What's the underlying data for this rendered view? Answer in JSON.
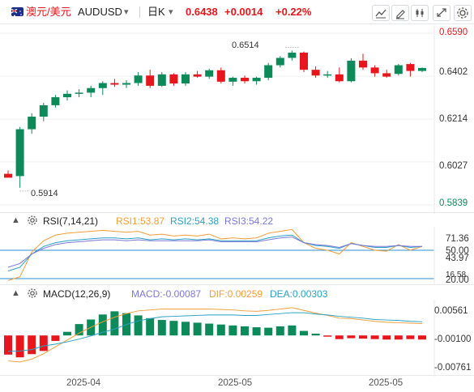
{
  "header": {
    "symbol_cn": "澳元/美元",
    "symbol_code": "AUDUSD",
    "caret": "▾",
    "period": "日K",
    "price": "0.6438",
    "change": "+0.0014",
    "change_pct": "+0.22%",
    "up_color": "#e7161c",
    "flag_icon": "australia-flag-icon",
    "tools": [
      "candlestick-chart-icon",
      "pencil-draw-icon",
      "indicator-settings-icon",
      "fullscreen-expand-icon",
      "settings-icon"
    ]
  },
  "main_chart": {
    "y_ticks": [
      "0.6590",
      "0.6402",
      "0.6214",
      "0.6027",
      "0.5839"
    ],
    "high_label": "0.6514",
    "low_label": "0.5914",
    "colors": {
      "up": "#0d8a5a",
      "down": "#e7161c",
      "axis_red": "#e7161c"
    }
  },
  "rsi": {
    "title": "RSI(7,14,21)",
    "rsi1": "RSI1:53.87",
    "rsi2": "RSI2:54.38",
    "rsi3": "RSI3:54.22",
    "y_ticks": [
      "71.36",
      "50.00",
      "43.97",
      "20.00",
      "16.58"
    ],
    "colors": {
      "rsi1": "#f29d38",
      "rsi2": "#2aa0c6",
      "rsi3": "#7b78d8"
    }
  },
  "macd": {
    "title": "MACD(12,26,9)",
    "macd": "MACD:-0.00087",
    "dif": "DIF:0.00259",
    "dea": "DEA:0.00303",
    "y_ticks": [
      "0.00561",
      "-0.00100",
      "-0.00761"
    ],
    "colors": {
      "macd": "#7b78d8",
      "dif": "#f29d38",
      "dea": "#2aa0c6"
    }
  },
  "x_axis": {
    "labels": [
      "2025-04",
      "2025-05",
      "2025-05"
    ]
  },
  "chart_data": [
    {
      "type": "candlestick",
      "title": "AUDUSD 日K",
      "y_range": [
        0.5839,
        0.659
      ],
      "high_label": 0.6514,
      "low_label": 0.5914,
      "candles_ohlc": [
        [
          0.5975,
          0.599,
          0.5965,
          0.5958
        ],
        [
          0.5965,
          0.618,
          0.5914,
          0.617
        ],
        [
          0.617,
          0.624,
          0.615,
          0.6225
        ],
        [
          0.6225,
          0.6285,
          0.6205,
          0.6275
        ],
        [
          0.6275,
          0.632,
          0.6265,
          0.631
        ],
        [
          0.631,
          0.634,
          0.6295,
          0.6325
        ],
        [
          0.6325,
          0.6345,
          0.631,
          0.633
        ],
        [
          0.633,
          0.636,
          0.631,
          0.635
        ],
        [
          0.635,
          0.638,
          0.632,
          0.6372
        ],
        [
          0.6372,
          0.639,
          0.6355,
          0.6365
        ],
        [
          0.6365,
          0.6385,
          0.635,
          0.6372
        ],
        [
          0.6372,
          0.642,
          0.636,
          0.6405
        ],
        [
          0.6405,
          0.643,
          0.635,
          0.636
        ],
        [
          0.636,
          0.642,
          0.6355,
          0.641
        ],
        [
          0.641,
          0.6415,
          0.636,
          0.637
        ],
        [
          0.637,
          0.642,
          0.636,
          0.641
        ],
        [
          0.641,
          0.6425,
          0.6395,
          0.64
        ],
        [
          0.64,
          0.6435,
          0.639,
          0.6428
        ],
        [
          0.6428,
          0.644,
          0.637,
          0.6378
        ],
        [
          0.6378,
          0.64,
          0.636,
          0.6395
        ],
        [
          0.6395,
          0.6405,
          0.637,
          0.638
        ],
        [
          0.638,
          0.64,
          0.6365,
          0.6395
        ],
        [
          0.6395,
          0.646,
          0.6385,
          0.645
        ],
        [
          0.645,
          0.649,
          0.644,
          0.6482
        ],
        [
          0.6482,
          0.6514,
          0.647,
          0.6505
        ],
        [
          0.6505,
          0.651,
          0.642,
          0.643
        ],
        [
          0.643,
          0.6445,
          0.6395,
          0.6405
        ],
        [
          0.6405,
          0.6425,
          0.6395,
          0.641
        ],
        [
          0.641,
          0.644,
          0.6375,
          0.638
        ],
        [
          0.638,
          0.648,
          0.6375,
          0.647
        ],
        [
          0.647,
          0.65,
          0.643,
          0.644
        ],
        [
          0.644,
          0.645,
          0.64,
          0.6415
        ],
        [
          0.6415,
          0.643,
          0.6395,
          0.64
        ],
        [
          0.6412,
          0.6455,
          0.6405,
          0.645
        ],
        [
          0.6455,
          0.646,
          0.64,
          0.6425
        ],
        [
          0.6425,
          0.644,
          0.642,
          0.6438
        ]
      ]
    },
    {
      "type": "line",
      "title": "RSI(7,14,21)",
      "y_range": [
        16.58,
        71.36
      ],
      "series": [
        {
          "name": "RSI1",
          "values": [
            18,
            22,
            48,
            60,
            66,
            68,
            69,
            70,
            71,
            70,
            69,
            70,
            66,
            67,
            65,
            66,
            65,
            67,
            62,
            63,
            62,
            63,
            68,
            70,
            72,
            58,
            52,
            50,
            46,
            58,
            54,
            50,
            49,
            56,
            50,
            54
          ]
        },
        {
          "name": "RSI2",
          "values": [
            28,
            32,
            46,
            54,
            58,
            60,
            61,
            62,
            63,
            63,
            62,
            63,
            61,
            62,
            61,
            62,
            61,
            62,
            60,
            60,
            60,
            60,
            63,
            65,
            66,
            58,
            55,
            54,
            52,
            57,
            55,
            53,
            53,
            55,
            53,
            54
          ]
        },
        {
          "name": "RSI3",
          "values": [
            32,
            36,
            46,
            52,
            56,
            58,
            59,
            60,
            61,
            61,
            60,
            61,
            60,
            60,
            60,
            60,
            60,
            61,
            59,
            59,
            59,
            59,
            61,
            63,
            64,
            58,
            56,
            55,
            53,
            57,
            55,
            54,
            54,
            55,
            54,
            54
          ]
        }
      ],
      "reference_lines": [
        50,
        20
      ]
    },
    {
      "type": "bar",
      "title": "MACD(12,26,9)",
      "y_range": [
        -0.0085,
        0.0075
      ],
      "series": [
        {
          "name": "MACD",
          "values": [
            -0.0042,
            -0.0048,
            -0.0041,
            -0.0034,
            -0.0012,
            0.0008,
            0.0025,
            0.0035,
            0.0046,
            0.0053,
            0.0049,
            0.0044,
            0.0038,
            0.0034,
            0.0032,
            0.003,
            0.0028,
            0.0026,
            0.0024,
            0.0022,
            0.002,
            0.0018,
            0.0017,
            0.002,
            0.0022,
            0.001,
            0.0004,
            -0.0001,
            -0.0008,
            -0.0006,
            -0.0007,
            -0.0008,
            -0.0009,
            -0.0009,
            -0.0008,
            -0.0009
          ]
        },
        {
          "name": "DIF",
          "values": [
            -0.0056,
            -0.0058,
            -0.0052,
            -0.004,
            -0.0025,
            -0.001,
            0.0005,
            0.0018,
            0.003,
            0.004,
            0.0048,
            0.0054,
            0.0056,
            0.0058,
            0.0058,
            0.0058,
            0.0058,
            0.0058,
            0.0057,
            0.0056,
            0.0054,
            0.0053,
            0.0055,
            0.0058,
            0.0061,
            0.0055,
            0.0049,
            0.0044,
            0.0038,
            0.0037,
            0.0034,
            0.0031,
            0.0029,
            0.0028,
            0.0027,
            0.0026
          ]
        },
        {
          "name": "DEA",
          "values": [
            -0.0035,
            -0.0034,
            -0.0031,
            -0.0023,
            -0.0019,
            -0.0014,
            -0.0008,
            -0.0001,
            0.0007,
            0.0014,
            0.0024,
            0.0032,
            0.0037,
            0.0041,
            0.0042,
            0.0043,
            0.0044,
            0.0045,
            0.0045,
            0.0045,
            0.0044,
            0.0044,
            0.0046,
            0.0048,
            0.005,
            0.005,
            0.0047,
            0.0045,
            0.0042,
            0.004,
            0.0038,
            0.0035,
            0.0034,
            0.0033,
            0.0031,
            0.003
          ]
        }
      ]
    }
  ]
}
